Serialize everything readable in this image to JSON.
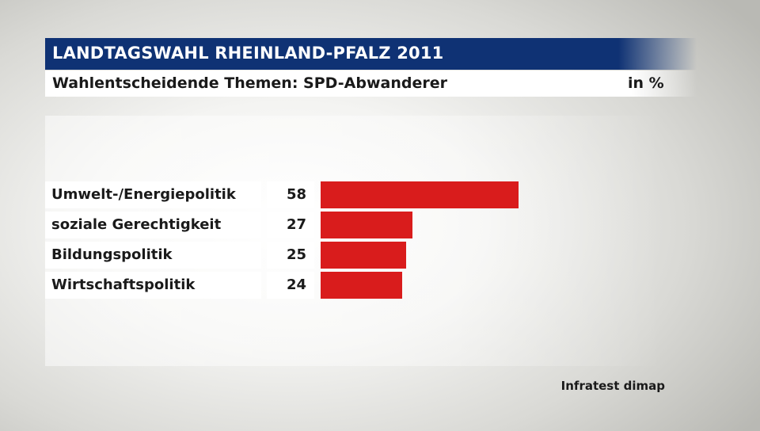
{
  "header": {
    "title": "LANDTAGSWAHL RHEINLAND-PFALZ 2011",
    "subtitle": "Wahlentscheidende Themen: SPD-Abwanderer",
    "unit": "in %"
  },
  "source": "Infratest dimap",
  "colors": {
    "title_bar": "#0f3274",
    "bar": "#d91c1c"
  },
  "chart_data": {
    "type": "bar",
    "orientation": "horizontal",
    "title": "LANDTAGSWAHL RHEINLAND-PFALZ 2011",
    "subtitle": "Wahlentscheidende Themen: SPD-Abwanderer",
    "unit": "in %",
    "categories": [
      "Umwelt-/Energiepolitik",
      "soziale Gerechtigkeit",
      "Bildungspolitik",
      "Wirtschaftspolitik"
    ],
    "values": [
      58,
      27,
      25,
      24
    ],
    "xlim": [
      0,
      100
    ],
    "grid": false,
    "legend": "none"
  }
}
